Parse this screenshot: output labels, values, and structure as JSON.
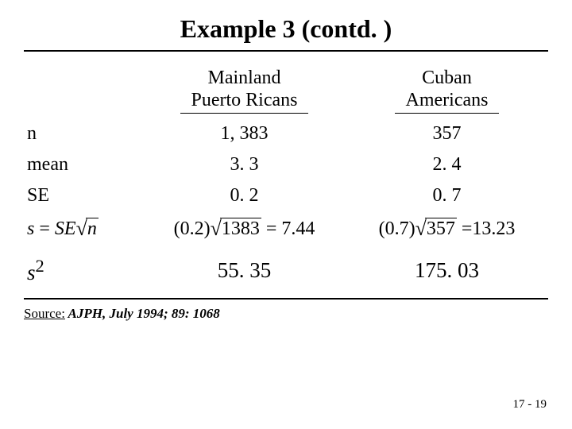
{
  "title": "Example 3 (contd. )",
  "columns": {
    "col1_line1": "Mainland",
    "col1_line2": "Puerto Ricans",
    "col2_line1": "Cuban",
    "col2_line2": "Americans"
  },
  "rows": {
    "n_label": "n",
    "n_col1": "1, 383",
    "n_col2": "357",
    "mean_label": "mean",
    "mean_col1": "3. 3",
    "mean_col2": "2. 4",
    "se_label": "SE",
    "se_col1": "0. 2",
    "se_col2": "0. 7"
  },
  "formula_row": {
    "lhs_s": "s",
    "lhs_eq": " = ",
    "lhs_se": "SE",
    "lhs_n": "n",
    "c1_pre": "(0.2)",
    "c1_rad": "1383",
    "c1_post": " = 7.44",
    "c2_pre": "(0.7)",
    "c2_rad": "357",
    "c2_post": " =13.23"
  },
  "s2_row": {
    "label_s": "s",
    "label_sup": "2",
    "col1": "55. 35",
    "col2": "175. 03"
  },
  "source": {
    "prefix": "Source:",
    "rest": " AJPH, July 1994; 89: 1068"
  },
  "page_number": "17 - 19",
  "style": {
    "bg": "#ffffff",
    "fg": "#000000",
    "title_fontsize": 32,
    "body_fontsize": 24
  }
}
